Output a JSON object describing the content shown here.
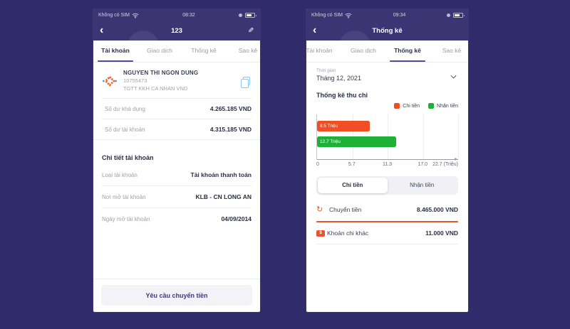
{
  "colors": {
    "background": "#302b6a",
    "header": "#3b3673",
    "accent_purple": "#504b9e",
    "orange": "#f04e23",
    "green": "#1db135",
    "copy_blue": "#8cc7ec"
  },
  "icons": {
    "back": "‹",
    "edit": "✎",
    "transfer": "↻",
    "money_symbol": "$"
  },
  "left_phone": {
    "status_bar": {
      "carrier": "Không có SIM",
      "time": "08:32"
    },
    "nav": {
      "title": "123"
    },
    "tabs": [
      {
        "label": "Tài khoản",
        "active": true
      },
      {
        "label": "Giao dịch",
        "active": false
      },
      {
        "label": "Thống kê",
        "active": false
      },
      {
        "label": "Sao kê",
        "active": false
      }
    ],
    "account": {
      "name": "NGUYEN THI NGON DUNG",
      "number": "10755473",
      "type": "TGTT KKH CA NHAN VND"
    },
    "balances": [
      {
        "label": "Số dư khả dụng",
        "value": "4.265.185 VND"
      },
      {
        "label": "Số dư tài khoản",
        "value": "4.315.185 VND"
      }
    ],
    "details": {
      "heading": "Chi tiết tài khoản",
      "rows": [
        {
          "label": "Loại tài khoản",
          "value": "Tài khoản thanh toán"
        },
        {
          "label": "Nơi mở tài khoản",
          "value": "KLB - CN LONG AN"
        },
        {
          "label": "Ngày mở tài khoản",
          "value": "04/09/2014"
        }
      ]
    },
    "action_button": "Yêu cầu chuyển tiền"
  },
  "right_phone": {
    "status_bar": {
      "carrier": "Không có SIM",
      "time": "09:34"
    },
    "nav": {
      "title": "Thống kê"
    },
    "tabs": [
      {
        "label": "Tài khoản",
        "active": false
      },
      {
        "label": "Giao dịch",
        "active": false
      },
      {
        "label": "Thống kê",
        "active": true
      },
      {
        "label": "Sao kê",
        "active": false
      }
    ],
    "period": {
      "label": "Thời gian",
      "value": "Tháng 12, 2021"
    },
    "section_heading": "Thống kê thu chi",
    "legend": [
      {
        "label": "Chi tiền",
        "color": "#f04e23"
      },
      {
        "label": "Nhận tiền",
        "color": "#1db135"
      }
    ],
    "chart_data": {
      "type": "bar",
      "orientation": "horizontal",
      "title": "Thống kê thu chi",
      "series": [
        {
          "name": "Chi tiền",
          "value": 8.5,
          "label": "8.5 Triệu",
          "color": "#f04e23"
        },
        {
          "name": "Nhận tiền",
          "value": 12.7,
          "label": "12.7 Triệu",
          "color": "#1db135"
        }
      ],
      "xticks": [
        "0",
        "5.7",
        "11.3",
        "17.0",
        "22.7 (Triệu)"
      ],
      "xlim": [
        0,
        22.7
      ],
      "unit": "Triệu",
      "grid": true,
      "legend_position": "top-right"
    },
    "toggle": [
      {
        "label": "Chi tiền",
        "active": true
      },
      {
        "label": "Nhận tiền",
        "active": false
      }
    ],
    "transactions": [
      {
        "label": "Chuyển tiền",
        "value": "8.465.000 VND"
      },
      {
        "label": "Khoản chi khác",
        "value": "11.000 VND"
      }
    ]
  }
}
